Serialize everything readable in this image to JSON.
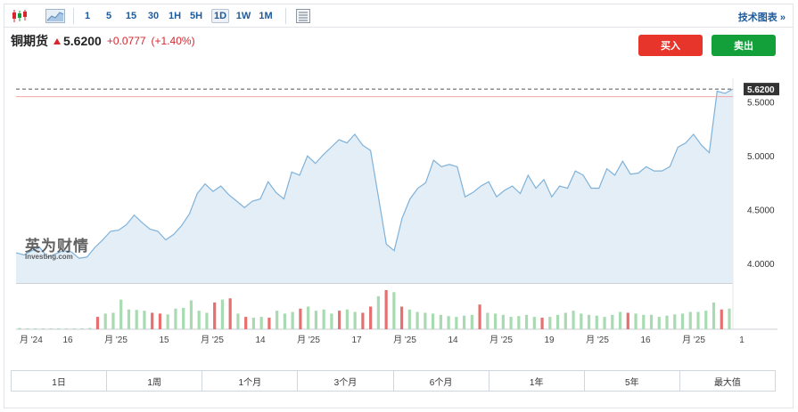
{
  "toolbar": {
    "intervals": [
      "1",
      "5",
      "15",
      "30",
      "1H",
      "5H",
      "1D",
      "1W",
      "1M"
    ],
    "active_interval": "1D",
    "tech_chart_link": "技术图表 »"
  },
  "instrument": {
    "name": "铜期货",
    "price": "5.6200",
    "change": "+0.0777",
    "change_pct": "(+1.40%)",
    "direction": "up"
  },
  "actions": {
    "buy": "买入",
    "sell": "卖出"
  },
  "watermark": {
    "cn": "英为财情",
    "en": "Investing.com"
  },
  "colors": {
    "up": "#d7262d",
    "down": "#13a03b",
    "line": "#7fb2d9",
    "area": "#e4eef7",
    "vol_up": "#a8dbb2",
    "vol_down": "#e67070"
  },
  "range_tabs": [
    "1日",
    "1周",
    "1个月",
    "3个月",
    "6个月",
    "1年",
    "5年",
    "最大值"
  ],
  "chart_data": {
    "type": "area",
    "y_ticks": [
      "5.5000",
      "5.0000",
      "4.5000",
      "4.0000"
    ],
    "y_range": [
      3.82,
      5.72
    ],
    "current_price_label": "5.6200",
    "current_price": 5.62,
    "x_labels": [
      "月 '24",
      "16",
      "月 '25",
      "15",
      "月 '25",
      "14",
      "月 '25",
      "17",
      "月 '25",
      "14",
      "月 '25",
      "19",
      "月 '25",
      "16",
      "月 '25",
      "1"
    ],
    "price_series": [
      4.1,
      4.08,
      4.12,
      4.15,
      4.06,
      4.09,
      4.12,
      4.11,
      4.05,
      4.06,
      4.15,
      4.22,
      4.3,
      4.31,
      4.36,
      4.45,
      4.38,
      4.32,
      4.3,
      4.22,
      4.27,
      4.35,
      4.46,
      4.65,
      4.74,
      4.67,
      4.72,
      4.64,
      4.58,
      4.52,
      4.58,
      4.6,
      4.76,
      4.66,
      4.6,
      4.85,
      4.82,
      5.0,
      4.93,
      5.01,
      5.08,
      5.15,
      5.12,
      5.2,
      5.1,
      5.05,
      4.62,
      4.18,
      4.12,
      4.42,
      4.6,
      4.7,
      4.75,
      4.96,
      4.9,
      4.92,
      4.9,
      4.62,
      4.66,
      4.72,
      4.76,
      4.62,
      4.68,
      4.72,
      4.65,
      4.82,
      4.7,
      4.78,
      4.62,
      4.72,
      4.7,
      4.86,
      4.82,
      4.7,
      4.7,
      4.88,
      4.82,
      4.95,
      4.83,
      4.84,
      4.9,
      4.86,
      4.86,
      4.9,
      5.08,
      5.12,
      5.2,
      5.1,
      5.03,
      5.6,
      5.58,
      5.62
    ],
    "volume_series": [
      3,
      2,
      2,
      2,
      2,
      2,
      2,
      2,
      2,
      3,
      30,
      38,
      40,
      72,
      48,
      47,
      45,
      40,
      38,
      36,
      50,
      52,
      70,
      45,
      40,
      65,
      72,
      75,
      38,
      30,
      28,
      30,
      28,
      45,
      38,
      42,
      50,
      55,
      45,
      48,
      38,
      45,
      48,
      42,
      40,
      55,
      80,
      95,
      90,
      55,
      48,
      42,
      40,
      38,
      35,
      32,
      30,
      33,
      35,
      60,
      40,
      38,
      35,
      30,
      32,
      35,
      30,
      28,
      30,
      35,
      40,
      45,
      38,
      35,
      33,
      30,
      35,
      42,
      40,
      38,
      35,
      35,
      30,
      33,
      36,
      38,
      42,
      42,
      45,
      65,
      48,
      50
    ],
    "volume_down_idx": [
      10,
      17,
      18,
      25,
      27,
      29,
      32,
      36,
      41,
      44,
      45,
      47,
      49,
      59,
      67,
      78,
      90
    ]
  }
}
